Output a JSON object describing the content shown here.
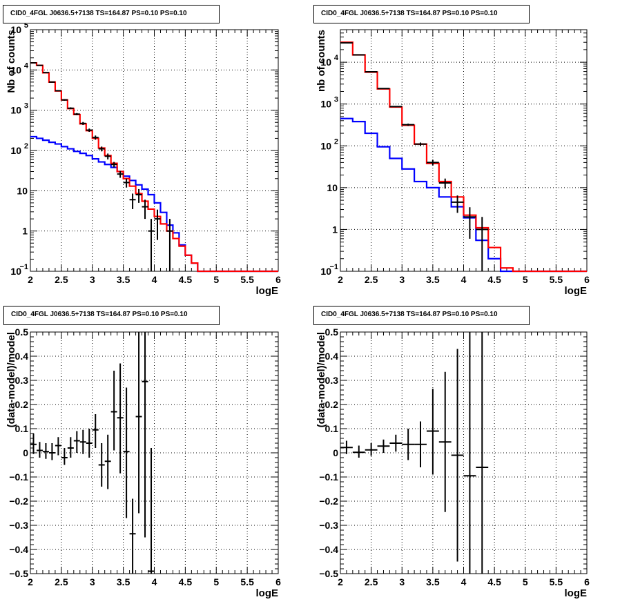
{
  "canvas": {
    "background": "#ffffff"
  },
  "colors": {
    "total_model": "#ff0000",
    "background_model": "#0000ff",
    "data": "#000000",
    "grid": "#000000"
  },
  "chart_data": [
    {
      "id": "top-left",
      "type": "step-histogram",
      "title": "CID0_4FGL J0636.5+7138 TS=164.87 PS=0.10 PS=0.10",
      "xlabel": "logE",
      "ylabel": "Nb of counts",
      "yscale": "log",
      "xlim": [
        2,
        6
      ],
      "ylim": [
        0.1,
        100000
      ],
      "grid": true,
      "xticks": [
        "2",
        "2.5",
        "3",
        "3.5",
        "4",
        "4.5",
        "5",
        "5.5",
        "6"
      ],
      "yticks": [
        {
          "v": 0.1,
          "label": "10",
          "sup": "−1"
        },
        {
          "v": 1,
          "label": "1",
          "sup": ""
        },
        {
          "v": 10,
          "label": "10",
          "sup": ""
        },
        {
          "v": 100,
          "label": "10",
          "sup": "2"
        },
        {
          "v": 1000,
          "label": "10",
          "sup": "3"
        },
        {
          "v": 10000,
          "label": "10",
          "sup": "4"
        },
        {
          "v": 100000,
          "label": "10",
          "sup": "5"
        }
      ],
      "bin_edges": [
        2,
        2.1,
        2.2,
        2.3,
        2.4,
        2.5,
        2.6,
        2.7,
        2.8,
        2.9,
        3,
        3.1,
        3.2,
        3.3,
        3.4,
        3.5,
        3.6,
        3.7,
        3.8,
        3.9,
        4,
        4.1,
        4.2,
        4.3,
        4.4,
        4.5,
        4.6,
        4.7,
        4.8,
        4.9,
        5,
        5.1,
        5.2,
        5.3,
        5.4,
        5.5,
        5.6,
        5.7,
        5.8,
        5.9,
        6
      ],
      "series": [
        {
          "role": "total_model",
          "values": [
            15000,
            13000,
            8500,
            5000,
            3000,
            1800,
            1100,
            780,
            460,
            310,
            200,
            115,
            75,
            48,
            30,
            20,
            13,
            8.5,
            5.5,
            3.5,
            2.3,
            1.5,
            1,
            0.65,
            0.42,
            0.25,
            0.16,
            0.1,
            0.1,
            0.1,
            0.1,
            0.1,
            0.1,
            0.1,
            0.1,
            0.1,
            0.1,
            0.1,
            0.1,
            0.1
          ]
        },
        {
          "role": "background_model",
          "values": [
            220,
            200,
            180,
            160,
            145,
            125,
            110,
            95,
            85,
            75,
            62,
            52,
            45,
            38,
            30,
            23,
            18,
            14,
            11,
            8,
            5,
            2.9,
            1.4,
            0.9,
            0.45,
            0.25,
            0.16,
            0.1,
            0.1,
            0.1,
            0.1,
            0.1,
            0.1,
            0.1,
            0.1,
            0.1,
            0.1,
            0.1,
            0.1,
            0.1
          ]
        }
      ],
      "points": [
        {
          "x": 2.05,
          "y": 15000,
          "lo": 14700,
          "hi": 15300
        },
        {
          "x": 2.15,
          "y": 13000,
          "lo": 12700,
          "hi": 13300
        },
        {
          "x": 2.25,
          "y": 8600,
          "lo": 8400,
          "hi": 8800
        },
        {
          "x": 2.35,
          "y": 5000,
          "lo": 4850,
          "hi": 5150
        },
        {
          "x": 2.45,
          "y": 3050,
          "lo": 2940,
          "hi": 3160
        },
        {
          "x": 2.55,
          "y": 1800,
          "lo": 1720,
          "hi": 1880
        },
        {
          "x": 2.65,
          "y": 1120,
          "lo": 1060,
          "hi": 1180
        },
        {
          "x": 2.75,
          "y": 800,
          "lo": 750,
          "hi": 850
        },
        {
          "x": 2.85,
          "y": 470,
          "lo": 430,
          "hi": 510
        },
        {
          "x": 2.95,
          "y": 320,
          "lo": 290,
          "hi": 350
        },
        {
          "x": 3.05,
          "y": 210,
          "lo": 185,
          "hi": 235
        },
        {
          "x": 3.15,
          "y": 110,
          "lo": 95,
          "hi": 125
        },
        {
          "x": 3.25,
          "y": 72,
          "lo": 60,
          "hi": 84
        },
        {
          "x": 3.35,
          "y": 45,
          "lo": 38,
          "hi": 52
        },
        {
          "x": 3.45,
          "y": 26,
          "lo": 21,
          "hi": 31
        },
        {
          "x": 3.55,
          "y": 16,
          "lo": 12,
          "hi": 20
        },
        {
          "x": 3.65,
          "y": 6,
          "lo": 3.5,
          "hi": 8.5
        },
        {
          "x": 3.75,
          "y": 8,
          "lo": 5,
          "hi": 11
        },
        {
          "x": 3.85,
          "y": 4,
          "lo": 2,
          "hi": 6
        },
        {
          "x": 3.95,
          "y": 1,
          "lo": 0.1,
          "hi": 2
        },
        {
          "x": 4.05,
          "y": 2,
          "lo": 0.6,
          "hi": 3.4
        },
        {
          "x": 4.25,
          "y": 1,
          "lo": 0.1,
          "hi": 2
        }
      ]
    },
    {
      "id": "top-right",
      "type": "step-histogram",
      "title": "CID0_4FGL J0636.5+7138 TS=164.87 PS=0.10 PS=0.10",
      "xlabel": "logE",
      "ylabel": "nb of counts",
      "yscale": "log",
      "xlim": [
        2,
        6
      ],
      "ylim": [
        0.1,
        60000
      ],
      "grid": true,
      "xticks": [
        "2",
        "2.5",
        "3",
        "3.5",
        "4",
        "4.5",
        "5",
        "5.5",
        "6"
      ],
      "yticks": [
        {
          "v": 0.1,
          "label": "10",
          "sup": "−1"
        },
        {
          "v": 1,
          "label": "1",
          "sup": ""
        },
        {
          "v": 10,
          "label": "10",
          "sup": ""
        },
        {
          "v": 100,
          "label": "10",
          "sup": "2"
        },
        {
          "v": 1000,
          "label": "10",
          "sup": "3"
        },
        {
          "v": 10000,
          "label": "10",
          "sup": "4"
        }
      ],
      "bin_edges": [
        2,
        2.2,
        2.4,
        2.6,
        2.8,
        3,
        3.2,
        3.4,
        3.6,
        3.8,
        4,
        4.2,
        4.4,
        4.6,
        4.8,
        5,
        5.2,
        5.4,
        5.6,
        5.8,
        6
      ],
      "series": [
        {
          "role": "total_model",
          "values": [
            30000,
            15000,
            5800,
            2300,
            850,
            310,
            110,
            38,
            14,
            6,
            2.2,
            1.1,
            0.37,
            0.12,
            0.1,
            0.1,
            0.1,
            0.1,
            0.1,
            0.1
          ]
        },
        {
          "role": "background_model",
          "values": [
            450,
            380,
            200,
            95,
            50,
            28,
            14,
            10,
            6,
            3.5,
            1.9,
            0.55,
            0.2,
            0.1,
            0.1,
            0.1,
            0.1,
            0.1,
            0.1,
            0.1
          ]
        }
      ],
      "points": [
        {
          "x": 2.1,
          "y": 29000,
          "lo": 28800,
          "hi": 29200
        },
        {
          "x": 2.3,
          "y": 15000,
          "lo": 14850,
          "hi": 15150
        },
        {
          "x": 2.5,
          "y": 5900,
          "lo": 5800,
          "hi": 6000
        },
        {
          "x": 2.7,
          "y": 2350,
          "lo": 2300,
          "hi": 2400
        },
        {
          "x": 2.9,
          "y": 870,
          "lo": 840,
          "hi": 900
        },
        {
          "x": 3.1,
          "y": 320,
          "lo": 300,
          "hi": 340
        },
        {
          "x": 3.3,
          "y": 110,
          "lo": 100,
          "hi": 120
        },
        {
          "x": 3.5,
          "y": 40,
          "lo": 34,
          "hi": 46
        },
        {
          "x": 3.7,
          "y": 13,
          "lo": 9.5,
          "hi": 16.5
        },
        {
          "x": 3.9,
          "y": 4.5,
          "lo": 2.5,
          "hi": 6.5
        },
        {
          "x": 4.1,
          "y": 2,
          "lo": 0.6,
          "hi": 3.4
        },
        {
          "x": 4.3,
          "y": 1,
          "lo": 0.1,
          "hi": 2
        }
      ]
    },
    {
      "id": "bottom-left",
      "type": "scatter-errorbars",
      "title": "CID0_4FGL J0636.5+7138 TS=164.87 PS=0.10 PS=0.10",
      "xlabel": "logE",
      "ylabel": "(data-model)/model",
      "yscale": "linear",
      "xlim": [
        2,
        6
      ],
      "ylim": [
        -0.5,
        0.5
      ],
      "grid": true,
      "xticks": [
        "2",
        "2.5",
        "3",
        "3.5",
        "4",
        "4.5",
        "5",
        "5.5",
        "6"
      ],
      "yticks_values": [
        -0.5,
        -0.4,
        -0.3,
        -0.2,
        -0.1,
        0,
        0.1,
        0.2,
        0.3,
        0.4,
        0.5
      ],
      "yticks": [
        "−0.5",
        "−0.4",
        "−0.3",
        "−0.2",
        "−0.1",
        "0",
        "0.1",
        "0.2",
        "0.3",
        "0.4",
        "0.5"
      ],
      "xerr": 0.05,
      "points": [
        {
          "x": 2.05,
          "y": 0.035,
          "lo": -0.005,
          "hi": 0.08
        },
        {
          "x": 2.15,
          "y": 0.01,
          "lo": -0.02,
          "hi": 0.045
        },
        {
          "x": 2.25,
          "y": 0.005,
          "lo": -0.025,
          "hi": 0.04
        },
        {
          "x": 2.35,
          "y": 0.0,
          "lo": -0.03,
          "hi": 0.04
        },
        {
          "x": 2.45,
          "y": 0.03,
          "lo": -0.01,
          "hi": 0.065
        },
        {
          "x": 2.55,
          "y": -0.02,
          "lo": -0.05,
          "hi": 0.02
        },
        {
          "x": 2.65,
          "y": 0.02,
          "lo": -0.02,
          "hi": 0.065
        },
        {
          "x": 2.75,
          "y": 0.05,
          "lo": 0.0,
          "hi": 0.09
        },
        {
          "x": 2.85,
          "y": 0.045,
          "lo": -0.005,
          "hi": 0.095
        },
        {
          "x": 2.95,
          "y": 0.04,
          "lo": -0.02,
          "hi": 0.1
        },
        {
          "x": 3.05,
          "y": 0.095,
          "lo": 0.02,
          "hi": 0.16
        },
        {
          "x": 3.15,
          "y": -0.05,
          "lo": -0.14,
          "hi": 0.04
        },
        {
          "x": 3.25,
          "y": -0.035,
          "lo": -0.15,
          "hi": 0.075
        },
        {
          "x": 3.35,
          "y": 0.17,
          "lo": 0.01,
          "hi": 0.34
        },
        {
          "x": 3.45,
          "y": 0.145,
          "lo": -0.085,
          "hi": 0.37
        },
        {
          "x": 3.55,
          "y": 0.005,
          "lo": -0.27,
          "hi": 0.27
        },
        {
          "x": 3.65,
          "y": -0.335,
          "lo": -0.5,
          "hi": -0.19
        },
        {
          "x": 3.75,
          "y": 0.15,
          "lo": -0.25,
          "hi": 0.55
        },
        {
          "x": 3.85,
          "y": 0.295,
          "lo": -0.35,
          "hi": 0.5
        },
        {
          "x": 3.95,
          "y": -0.49,
          "lo": -0.5,
          "hi": 0.02
        }
      ]
    },
    {
      "id": "bottom-right",
      "type": "scatter-errorbars",
      "title": "CID0_4FGL J0636.5+7138 TS=164.87 PS=0.10 PS=0.10",
      "xlabel": "logE",
      "ylabel": "(data-model)/model",
      "yscale": "linear",
      "xlim": [
        2,
        6
      ],
      "ylim": [
        -0.5,
        0.5
      ],
      "grid": true,
      "xticks": [
        "2",
        "2.5",
        "3",
        "3.5",
        "4",
        "4.5",
        "5",
        "5.5",
        "6"
      ],
      "yticks_values": [
        -0.5,
        -0.4,
        -0.3,
        -0.2,
        -0.1,
        0,
        0.1,
        0.2,
        0.3,
        0.4,
        0.5
      ],
      "yticks": [
        "−0.5",
        "−0.4",
        "−0.3",
        "−0.2",
        "−0.1",
        "0",
        "0.1",
        "0.2",
        "0.3",
        "0.4",
        "0.5"
      ],
      "xerr": 0.1,
      "points": [
        {
          "x": 2.1,
          "y": 0.022,
          "lo": -0.005,
          "hi": 0.05
        },
        {
          "x": 2.3,
          "y": 0.002,
          "lo": -0.02,
          "hi": 0.03
        },
        {
          "x": 2.5,
          "y": 0.012,
          "lo": -0.012,
          "hi": 0.04
        },
        {
          "x": 2.7,
          "y": 0.028,
          "lo": 0.0,
          "hi": 0.055
        },
        {
          "x": 2.9,
          "y": 0.04,
          "lo": 0.005,
          "hi": 0.075
        },
        {
          "x": 3.1,
          "y": 0.035,
          "lo": -0.03,
          "hi": 0.1
        },
        {
          "x": 3.3,
          "y": 0.035,
          "lo": -0.06,
          "hi": 0.13
        },
        {
          "x": 3.5,
          "y": 0.09,
          "lo": -0.09,
          "hi": 0.265
        },
        {
          "x": 3.7,
          "y": 0.045,
          "lo": -0.245,
          "hi": 0.335
        },
        {
          "x": 3.9,
          "y": -0.01,
          "lo": -0.45,
          "hi": 0.43
        },
        {
          "x": 4.1,
          "y": -0.095,
          "lo": -0.5,
          "hi": 0.5
        },
        {
          "x": 4.3,
          "y": -0.06,
          "lo": -0.5,
          "hi": 0.5
        }
      ]
    }
  ]
}
